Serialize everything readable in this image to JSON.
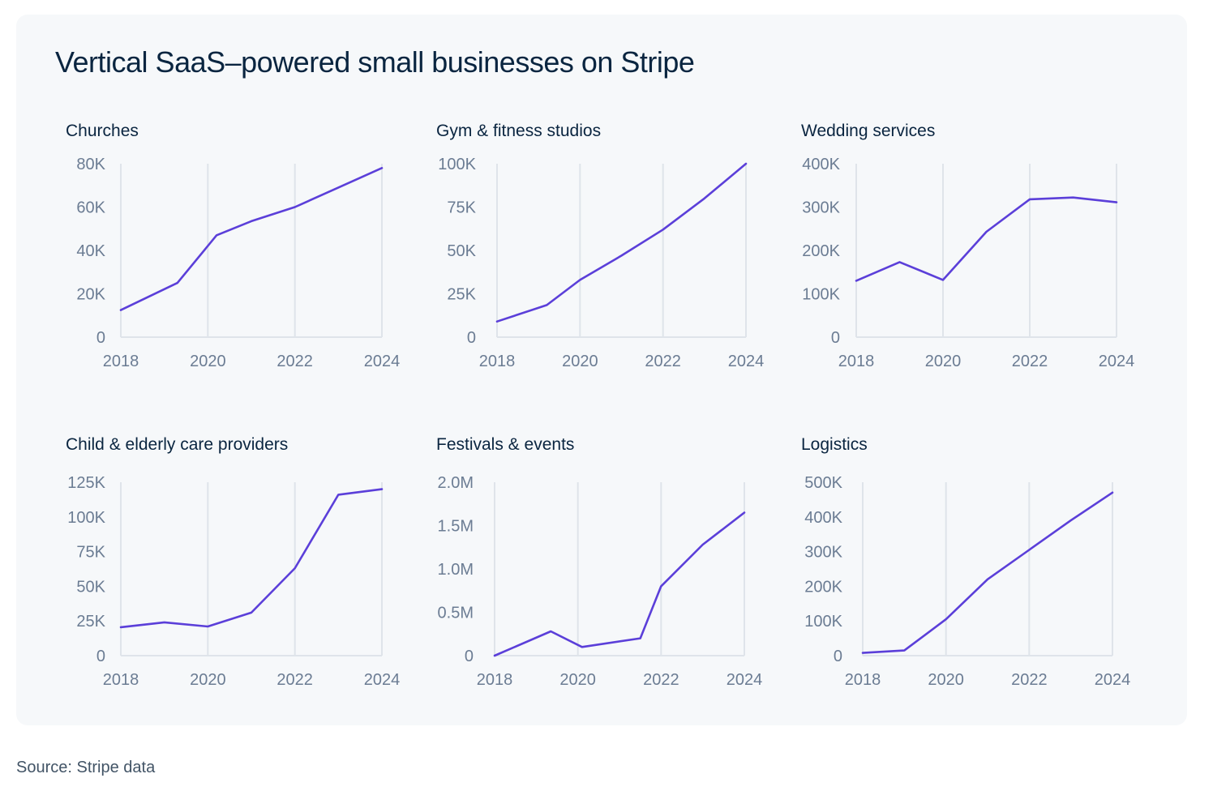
{
  "title": "Vertical SaaS–powered small businesses on Stripe",
  "source": "Source: Stripe data",
  "colors": {
    "line": "#5b3fd9",
    "panel": "#f6f8fa",
    "grid": "#dfe4ea"
  },
  "chart_data": [
    {
      "type": "line",
      "title": "Churches",
      "x": [
        2018,
        2019.3,
        2020.2,
        2021,
        2022,
        2023,
        2024
      ],
      "values": [
        12500,
        25000,
        47000,
        53500,
        60000,
        69000,
        78000
      ],
      "xticks": [
        "2018",
        "2020",
        "2022",
        "2024"
      ],
      "yticks": [
        "0",
        "20K",
        "40K",
        "60K",
        "80K"
      ],
      "ylim": [
        0,
        80000
      ],
      "xlim": [
        2018,
        2024
      ],
      "grid": true,
      "legend": "none"
    },
    {
      "type": "line",
      "title": "Gym & fitness studios",
      "x": [
        2018,
        2019.2,
        2020,
        2021,
        2022,
        2023,
        2024
      ],
      "values": [
        9000,
        18500,
        33000,
        47000,
        62000,
        80000,
        100000
      ],
      "xticks": [
        "2018",
        "2020",
        "2022",
        "2024"
      ],
      "yticks": [
        "0",
        "25K",
        "50K",
        "75K",
        "100K"
      ],
      "ylim": [
        0,
        100000
      ],
      "xlim": [
        2018,
        2024
      ],
      "grid": true,
      "legend": "none"
    },
    {
      "type": "line",
      "title": "Wedding services",
      "x": [
        2018,
        2019,
        2020,
        2021,
        2022,
        2023,
        2024
      ],
      "values": [
        130000,
        173000,
        132000,
        243000,
        318000,
        322000,
        311000
      ],
      "xticks": [
        "2018",
        "2020",
        "2022",
        "2024"
      ],
      "yticks": [
        "0",
        "100K",
        "200K",
        "300K",
        "400K"
      ],
      "ylim": [
        0,
        400000
      ],
      "xlim": [
        2018,
        2024
      ],
      "grid": true,
      "legend": "none"
    },
    {
      "type": "line",
      "title": "Child & elderly care providers",
      "x": [
        2018,
        2019,
        2020,
        2021,
        2022,
        2023,
        2024
      ],
      "values": [
        20500,
        24000,
        21000,
        31000,
        63000,
        116000,
        120000
      ],
      "xticks": [
        "2018",
        "2020",
        "2022",
        "2024"
      ],
      "yticks": [
        "0",
        "25K",
        "50K",
        "75K",
        "100K",
        "125K"
      ],
      "ylim": [
        0,
        125000
      ],
      "xlim": [
        2018,
        2024
      ],
      "grid": true,
      "legend": "none"
    },
    {
      "type": "line",
      "title": "Festivals & events",
      "x": [
        2018,
        2019.35,
        2020.1,
        2021.5,
        2022,
        2023,
        2024
      ],
      "values": [
        0,
        280000,
        100000,
        200000,
        800000,
        1280000,
        1650000
      ],
      "xticks": [
        "2018",
        "2020",
        "2022",
        "2024"
      ],
      "yticks": [
        "0",
        "0.5M",
        "1.0M",
        "1.5M",
        "2.0M"
      ],
      "ylim": [
        0,
        2000000
      ],
      "xlim": [
        2018,
        2024
      ],
      "grid": true,
      "legend": "none"
    },
    {
      "type": "line",
      "title": "Logistics",
      "x": [
        2018,
        2019,
        2020,
        2021,
        2022,
        2023,
        2024
      ],
      "values": [
        8000,
        15000,
        105000,
        220000,
        305000,
        390000,
        470000
      ],
      "xticks": [
        "2018",
        "2020",
        "2022",
        "2024"
      ],
      "yticks": [
        "0",
        "100K",
        "200K",
        "300K",
        "400K",
        "500K"
      ],
      "ylim": [
        0,
        500000
      ],
      "xlim": [
        2018,
        2024
      ],
      "grid": true,
      "legend": "none"
    }
  ]
}
